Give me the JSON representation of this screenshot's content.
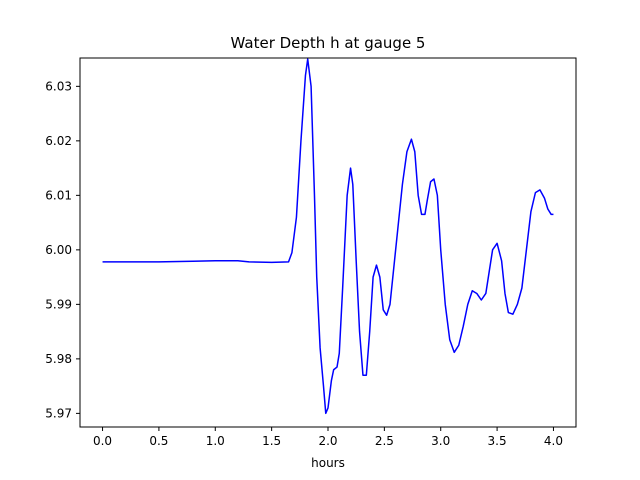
{
  "chart_data": {
    "type": "line",
    "title": "Water Depth h at gauge 5",
    "xlabel": "hours",
    "ylabel": "",
    "xlim": [
      -0.2,
      4.2
    ],
    "ylim": [
      5.9675,
      6.0352
    ],
    "xticks": [
      0.0,
      0.5,
      1.0,
      1.5,
      2.0,
      2.5,
      3.0,
      3.5,
      4.0
    ],
    "xtick_labels": [
      "0.0",
      "0.5",
      "1.0",
      "1.5",
      "2.0",
      "2.5",
      "3.0",
      "3.5",
      "4.0"
    ],
    "yticks": [
      5.97,
      5.98,
      5.99,
      6.0,
      6.01,
      6.02,
      6.03
    ],
    "ytick_labels": [
      "5.97",
      "5.98",
      "5.99",
      "6.00",
      "6.01",
      "6.02",
      "6.03"
    ],
    "grid": false,
    "colors": {
      "line": "#0000ff",
      "axes": "#000000",
      "background": "#ffffff"
    },
    "series": [
      {
        "x": [
          0.0,
          0.5,
          0.8,
          1.0,
          1.2,
          1.3,
          1.5,
          1.65,
          1.68,
          1.72,
          1.76,
          1.8,
          1.82,
          1.85,
          1.88,
          1.9,
          1.93,
          1.96,
          1.98,
          2.0,
          2.03,
          2.05,
          2.08,
          2.1,
          2.13,
          2.17,
          2.2,
          2.22,
          2.25,
          2.28,
          2.31,
          2.34,
          2.37,
          2.4,
          2.43,
          2.46,
          2.49,
          2.52,
          2.55,
          2.58,
          2.62,
          2.66,
          2.7,
          2.74,
          2.77,
          2.8,
          2.83,
          2.86,
          2.88,
          2.91,
          2.94,
          2.97,
          3.0,
          3.04,
          3.08,
          3.12,
          3.16,
          3.2,
          3.24,
          3.28,
          3.32,
          3.36,
          3.4,
          3.43,
          3.46,
          3.5,
          3.54,
          3.57,
          3.6,
          3.64,
          3.68,
          3.72,
          3.76,
          3.8,
          3.84,
          3.88,
          3.92,
          3.95,
          3.98,
          4.0
        ],
        "y": [
          5.9978,
          5.9978,
          5.9979,
          5.998,
          5.998,
          5.9978,
          5.9977,
          5.9978,
          5.9995,
          6.006,
          6.02,
          6.032,
          6.035,
          6.03,
          6.01,
          5.995,
          5.982,
          5.975,
          5.97,
          5.971,
          5.976,
          5.978,
          5.9785,
          5.981,
          5.993,
          6.01,
          6.015,
          6.012,
          5.998,
          5.985,
          5.977,
          5.977,
          5.985,
          5.995,
          5.9972,
          5.995,
          5.989,
          5.988,
          5.99,
          5.996,
          6.004,
          6.012,
          6.018,
          6.0203,
          6.018,
          6.01,
          6.0065,
          6.0065,
          6.009,
          6.0125,
          6.013,
          6.01,
          6.0,
          5.99,
          5.9835,
          5.9812,
          5.9825,
          5.986,
          5.99,
          5.9925,
          5.992,
          5.9908,
          5.992,
          5.996,
          6.0,
          6.0012,
          5.998,
          5.992,
          5.9885,
          5.9882,
          5.99,
          5.993,
          6.0,
          6.007,
          6.0105,
          6.011,
          6.0095,
          6.0075,
          6.0065,
          6.0065
        ]
      }
    ]
  }
}
